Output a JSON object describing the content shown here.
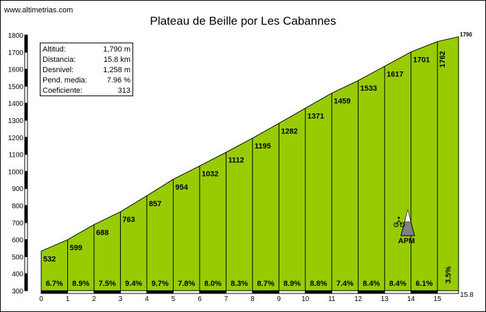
{
  "site": "www.altimetrias.com",
  "chart_data": {
    "type": "area",
    "title": "Plateau de Beille por Les Cabannes",
    "x_ticks": [
      "0",
      "1",
      "2",
      "3",
      "4",
      "5",
      "6",
      "7",
      "8",
      "9",
      "10",
      "11",
      "12",
      "13",
      "14",
      "15"
    ],
    "x_end_label": "15.8",
    "y_ticks": [
      "300",
      "400",
      "500",
      "600",
      "700",
      "800",
      "900",
      "1000",
      "1100",
      "1200",
      "1300",
      "1400",
      "1500",
      "1600",
      "1700",
      "1800"
    ],
    "ylim": [
      300,
      1800
    ],
    "xlim": [
      0,
      15.8
    ],
    "distance_km": [
      0,
      1,
      2,
      3,
      4,
      5,
      6,
      7,
      8,
      9,
      10,
      11,
      12,
      13,
      14,
      15,
      15.8
    ],
    "altitude_m": [
      532,
      599,
      688,
      763,
      857,
      954,
      1032,
      1112,
      1195,
      1282,
      1371,
      1459,
      1533,
      1617,
      1701,
      1762,
      1790
    ],
    "altitude_labels": [
      "532",
      "599",
      "688",
      "763",
      "857",
      "954",
      "1032",
      "1112",
      "1195",
      "1282",
      "1371",
      "1459",
      "1533",
      "1617",
      "1701",
      "1762"
    ],
    "end_altitude_label": "1790",
    "gradients": [
      "6.7%",
      "8.9%",
      "7.5%",
      "9.4%",
      "9.7%",
      "7.8%",
      "8.0%",
      "8.3%",
      "8.7%",
      "8.9%",
      "8.8%",
      "7.4%",
      "8.4%",
      "8.4%",
      "6.1%",
      "3.5%"
    ],
    "fill_color": "#99cc00",
    "line_color": "#000000"
  },
  "info": {
    "rows": [
      {
        "label": "Altitud:",
        "value": "1,790 m"
      },
      {
        "label": "Distancia:",
        "value": "15.8 km"
      },
      {
        "label": "Desnivel:",
        "value": "1,258 m"
      },
      {
        "label": "Pend. media:",
        "value": "7.96 %"
      },
      {
        "label": "Coeficiente:",
        "value": "313"
      }
    ]
  },
  "apm": {
    "label": "APM",
    "icon": "mountain-cyclist-icon"
  }
}
